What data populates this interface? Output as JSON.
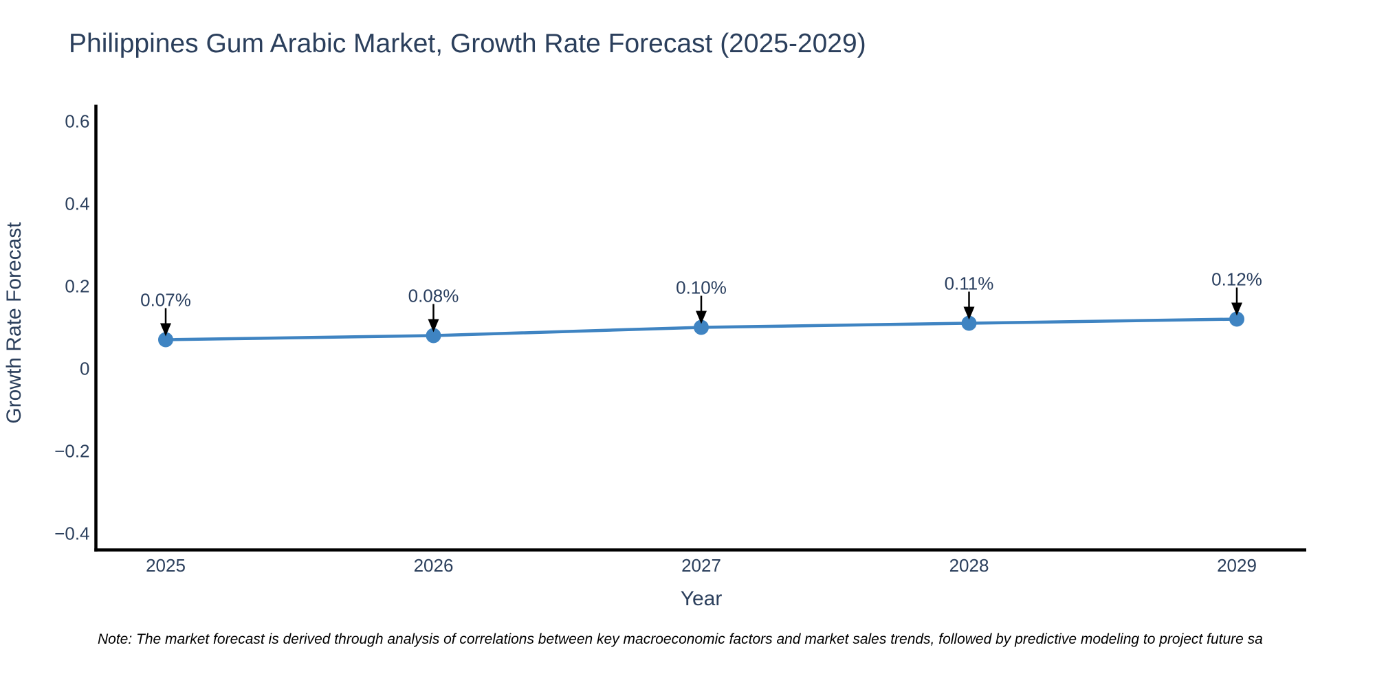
{
  "title": {
    "text": "Philippines Gum Arabic Market, Growth Rate Forecast (2025-2029)",
    "color": "#2b3f5c"
  },
  "note": {
    "text": "Note: The market forecast is derived through analysis of correlations between key macroeconomic factors and market sales trends, followed by predictive modeling to project future sa"
  },
  "chart_data": {
    "type": "line",
    "title": "Philippines Gum Arabic Market, Growth Rate Forecast (2025-2029)",
    "xlabel": "Year",
    "ylabel": "Growth Rate Forecast",
    "x": [
      2025,
      2026,
      2027,
      2028,
      2029
    ],
    "series": [
      {
        "name": "Growth Rate Forecast",
        "values": [
          0.07,
          0.08,
          0.1,
          0.11,
          0.12
        ]
      }
    ],
    "point_labels": [
      "0.07%",
      "0.08%",
      "0.10%",
      "0.11%",
      "0.12%"
    ],
    "yticks": [
      0.6,
      0.4,
      0.2,
      0,
      -0.2,
      -0.4
    ],
    "ylim": [
      -0.44,
      0.64
    ],
    "grid": false,
    "legend": "none",
    "annotations_have_arrows": true,
    "colors": {
      "line": "#3f84c2",
      "marker": "#3f84c2",
      "axis_line": "#000000",
      "tick_text": "#2b3f5c",
      "axis_title_text": "#2b3f5c",
      "annotation_text": "#2a3f5f",
      "arrow": "#000000"
    }
  }
}
